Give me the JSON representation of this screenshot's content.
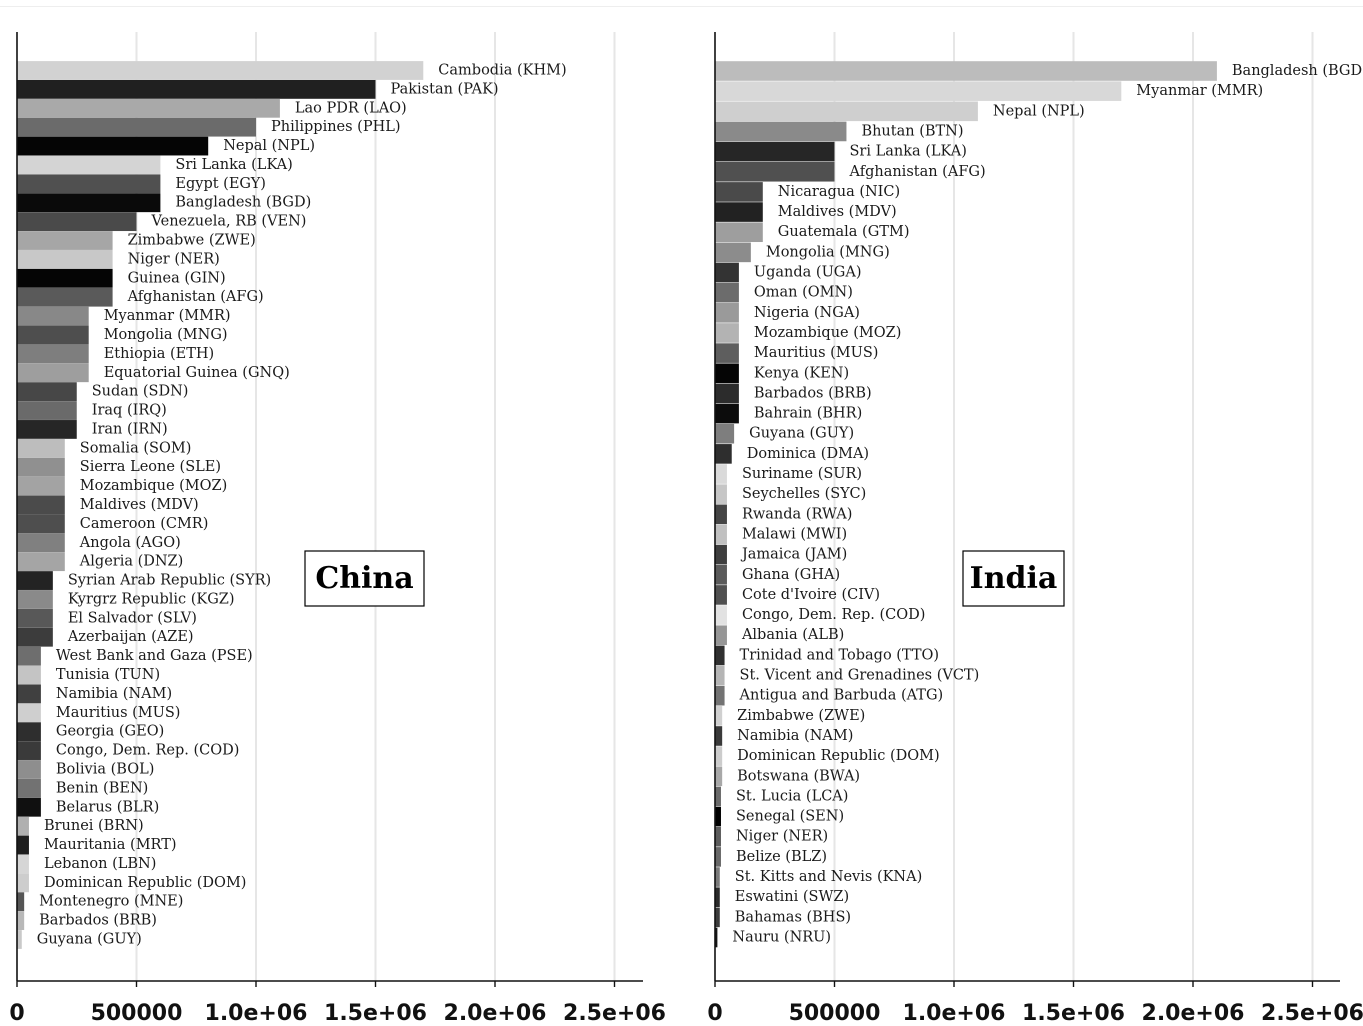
{
  "chart_data": [
    {
      "type": "bar",
      "orientation": "horizontal",
      "title": "China",
      "xlim": [
        0,
        2600000
      ],
      "xticks": [
        0,
        500000,
        1000000,
        1500000,
        2000000,
        2500000
      ],
      "xtick_labels": [
        "0",
        "500000",
        "1.0e+06",
        "1.5e+06",
        "2.0e+06",
        "2.5e+06"
      ],
      "grid": true,
      "bars": [
        {
          "label": "Cambodia (KHM)",
          "value": 1700000,
          "color": "#d2d2d2"
        },
        {
          "label": "Pakistan (PAK)",
          "value": 1500000,
          "color": "#202020"
        },
        {
          "label": "Lao PDR (LAO)",
          "value": 1100000,
          "color": "#a9a9a9"
        },
        {
          "label": "Philippines (PHL)",
          "value": 1000000,
          "color": "#6b6b6b"
        },
        {
          "label": "Nepal (NPL)",
          "value": 800000,
          "color": "#050505"
        },
        {
          "label": "Sri Lanka (LKA)",
          "value": 600000,
          "color": "#d4d4d4"
        },
        {
          "label": "Egypt (EGY)",
          "value": 600000,
          "color": "#505050"
        },
        {
          "label": "Bangladesh (BGD)",
          "value": 600000,
          "color": "#0a0a0a"
        },
        {
          "label": "Venezuela, RB (VEN)",
          "value": 500000,
          "color": "#4a4a4a"
        },
        {
          "label": "Zimbabwe (ZWE)",
          "value": 400000,
          "color": "#a6a6a6"
        },
        {
          "label": "Niger (NER)",
          "value": 400000,
          "color": "#c8c8c8"
        },
        {
          "label": "Guinea (GIN)",
          "value": 400000,
          "color": "#050505"
        },
        {
          "label": "Afghanistan (AFG)",
          "value": 400000,
          "color": "#5a5a5a"
        },
        {
          "label": "Myanmar (MMR)",
          "value": 300000,
          "color": "#888888"
        },
        {
          "label": "Mongolia (MNG)",
          "value": 300000,
          "color": "#4e4e4e"
        },
        {
          "label": "Ethiopia (ETH)",
          "value": 300000,
          "color": "#7e7e7e"
        },
        {
          "label": "Equatorial Guinea (GNQ)",
          "value": 300000,
          "color": "#9e9e9e"
        },
        {
          "label": "Sudan (SDN)",
          "value": 250000,
          "color": "#474747"
        },
        {
          "label": "Iraq (IRQ)",
          "value": 250000,
          "color": "#6a6a6a"
        },
        {
          "label": "Iran (IRN)",
          "value": 250000,
          "color": "#262626"
        },
        {
          "label": "Somalia (SOM)",
          "value": 200000,
          "color": "#bdbdbd"
        },
        {
          "label": "Sierra Leone (SLE)",
          "value": 200000,
          "color": "#909090"
        },
        {
          "label": "Mozambique (MOZ)",
          "value": 200000,
          "color": "#a3a3a3"
        },
        {
          "label": "Maldives (MDV)",
          "value": 200000,
          "color": "#4b4b4b"
        },
        {
          "label": "Cameroon (CMR)",
          "value": 200000,
          "color": "#4e4e4e"
        },
        {
          "label": "Angola (AGO)",
          "value": 200000,
          "color": "#808080"
        },
        {
          "label": "Algeria (DNZ)",
          "value": 200000,
          "color": "#a5a5a5"
        },
        {
          "label": "Syrian Arab Republic (SYR)",
          "value": 150000,
          "color": "#232323"
        },
        {
          "label": "Kyrgrz Republic (KGZ)",
          "value": 150000,
          "color": "#8a8a8a"
        },
        {
          "label": "El Salvador (SLV)",
          "value": 150000,
          "color": "#585858"
        },
        {
          "label": "Azerbaijan (AZE)",
          "value": 150000,
          "color": "#3c3c3c"
        },
        {
          "label": "West Bank and Gaza (PSE)",
          "value": 100000,
          "color": "#6e6e6e"
        },
        {
          "label": "Tunisia (TUN)",
          "value": 100000,
          "color": "#c4c4c4"
        },
        {
          "label": "Namibia (NAM)",
          "value": 100000,
          "color": "#404040"
        },
        {
          "label": "Mauritius (MUS)",
          "value": 100000,
          "color": "#cfcfcf"
        },
        {
          "label": "Georgia (GEO)",
          "value": 100000,
          "color": "#2e2e2e"
        },
        {
          "label": "Congo, Dem. Rep. (COD)",
          "value": 100000,
          "color": "#3a3a3a"
        },
        {
          "label": "Bolivia (BOL)",
          "value": 100000,
          "color": "#8e8e8e"
        },
        {
          "label": "Benin (BEN)",
          "value": 100000,
          "color": "#727272"
        },
        {
          "label": "Belarus (BLR)",
          "value": 100000,
          "color": "#101010"
        },
        {
          "label": "Brunei (BRN)",
          "value": 50000,
          "color": "#b0b0b0"
        },
        {
          "label": "Mauritania (MRT)",
          "value": 50000,
          "color": "#1e1e1e"
        },
        {
          "label": "Lebanon (LBN)",
          "value": 50000,
          "color": "#d6d6d6"
        },
        {
          "label": "Dominican Republic (DOM)",
          "value": 50000,
          "color": "#cdcdcd"
        },
        {
          "label": "Montenegro (MNE)",
          "value": 30000,
          "color": "#555555"
        },
        {
          "label": "Barbados (BRB)",
          "value": 30000,
          "color": "#b8b8b8"
        },
        {
          "label": "Guyana (GUY)",
          "value": 20000,
          "color": "#c9c9c9"
        }
      ]
    },
    {
      "type": "bar",
      "orientation": "horizontal",
      "title": "India",
      "xlim": [
        0,
        2600000
      ],
      "xticks": [
        0,
        500000,
        1000000,
        1500000,
        2000000,
        2500000
      ],
      "xtick_labels": [
        "0",
        "500000",
        "1.0e+06",
        "1.5e+06",
        "2.0e+06",
        "2.5e+06"
      ],
      "grid": true,
      "bars": [
        {
          "label": "Bangladesh (BGD)",
          "value": 2100000,
          "color": "#bcbcbc"
        },
        {
          "label": "Myanmar (MMR)",
          "value": 1700000,
          "color": "#d8d8d8"
        },
        {
          "label": "Nepal (NPL)",
          "value": 1100000,
          "color": "#cfcfcf"
        },
        {
          "label": "Bhutan (BTN)",
          "value": 550000,
          "color": "#8a8a8a"
        },
        {
          "label": "Sri Lanka (LKA)",
          "value": 500000,
          "color": "#262626"
        },
        {
          "label": "Afghanistan (AFG)",
          "value": 500000,
          "color": "#505050"
        },
        {
          "label": "Nicaragua (NIC)",
          "value": 200000,
          "color": "#4a4a4a"
        },
        {
          "label": "Maldives (MDV)",
          "value": 200000,
          "color": "#222222"
        },
        {
          "label": "Guatemala (GTM)",
          "value": 200000,
          "color": "#9e9e9e"
        },
        {
          "label": "Mongolia (MNG)",
          "value": 150000,
          "color": "#8c8c8c"
        },
        {
          "label": "Uganda (UGA)",
          "value": 100000,
          "color": "#333333"
        },
        {
          "label": "Oman (OMN)",
          "value": 100000,
          "color": "#6c6c6c"
        },
        {
          "label": "Nigeria (NGA)",
          "value": 100000,
          "color": "#9a9a9a"
        },
        {
          "label": "Mozambique (MOZ)",
          "value": 100000,
          "color": "#b3b3b3"
        },
        {
          "label": "Mauritius (MUS)",
          "value": 100000,
          "color": "#5e5e5e"
        },
        {
          "label": "Kenya (KEN)",
          "value": 100000,
          "color": "#050505"
        },
        {
          "label": "Barbados (BRB)",
          "value": 100000,
          "color": "#2c2c2c"
        },
        {
          "label": "Bahrain (BHR)",
          "value": 100000,
          "color": "#0c0c0c"
        },
        {
          "label": "Guyana (GUY)",
          "value": 80000,
          "color": "#7e7e7e"
        },
        {
          "label": "Dominica (DMA)",
          "value": 70000,
          "color": "#2e2e2e"
        },
        {
          "label": "Suriname (SUR)",
          "value": 50000,
          "color": "#dadada"
        },
        {
          "label": "Seychelles (SYC)",
          "value": 50000,
          "color": "#c6c6c6"
        },
        {
          "label": "Rwanda (RWA)",
          "value": 50000,
          "color": "#454545"
        },
        {
          "label": "Malawi (MWI)",
          "value": 50000,
          "color": "#c0c0c0"
        },
        {
          "label": "Jamaica (JAM)",
          "value": 50000,
          "color": "#3e3e3e"
        },
        {
          "label": "Ghana (GHA)",
          "value": 50000,
          "color": "#5a5a5a"
        },
        {
          "label": "Cote d'Ivoire (CIV)",
          "value": 50000,
          "color": "#505050"
        },
        {
          "label": "Congo, Dem. Rep. (COD)",
          "value": 50000,
          "color": "#e2e2e2"
        },
        {
          "label": "Albania (ALB)",
          "value": 50000,
          "color": "#969696"
        },
        {
          "label": "Trinidad and Tobago (TTO)",
          "value": 40000,
          "color": "#303030"
        },
        {
          "label": "St. Vicent and Grenadines (VCT)",
          "value": 40000,
          "color": "#b5b5b5"
        },
        {
          "label": "Antigua and Barbuda (ATG)",
          "value": 40000,
          "color": "#737373"
        },
        {
          "label": "Zimbabwe (ZWE)",
          "value": 30000,
          "color": "#d0d0d0"
        },
        {
          "label": "Namibia (NAM)",
          "value": 30000,
          "color": "#3a3a3a"
        },
        {
          "label": "Dominican Republic (DOM)",
          "value": 30000,
          "color": "#cccccc"
        },
        {
          "label": "Botswana (BWA)",
          "value": 30000,
          "color": "#a8a8a8"
        },
        {
          "label": "St. Lucia (LCA)",
          "value": 25000,
          "color": "#6a6a6a"
        },
        {
          "label": "Senegal (SEN)",
          "value": 25000,
          "color": "#000000"
        },
        {
          "label": "Niger (NER)",
          "value": 25000,
          "color": "#5c5c5c"
        },
        {
          "label": "Belize (BLZ)",
          "value": 25000,
          "color": "#686868"
        },
        {
          "label": "St. Kitts and Nevis (KNA)",
          "value": 20000,
          "color": "#7a7a7a"
        },
        {
          "label": "Eswatini (SWZ)",
          "value": 20000,
          "color": "#2a2a2a"
        },
        {
          "label": "Bahamas (BHS)",
          "value": 20000,
          "color": "#3c3c3c"
        },
        {
          "label": "Nauru (NRU)",
          "value": 10000,
          "color": "#141414"
        }
      ]
    }
  ]
}
